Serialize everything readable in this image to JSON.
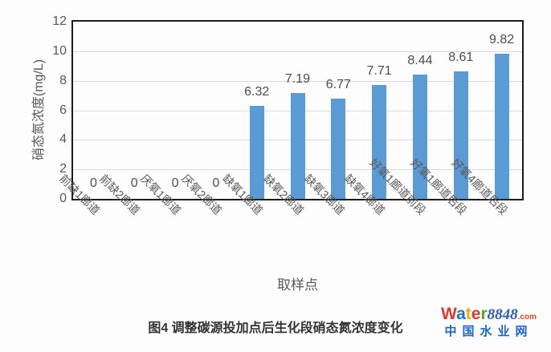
{
  "chart_data": {
    "type": "bar",
    "title": "",
    "categories": [
      "前缺1廊道",
      "前缺2廊道",
      "厌氧1廊道",
      "厌氧2廊道",
      "缺氧1廊道",
      "缺氧2廊道",
      "缺氧3廊道",
      "缺氧4廊道",
      "好氧1廊道前段",
      "好氧1廊道后段",
      "好氧4廊道后段"
    ],
    "values": [
      0,
      0,
      0,
      0,
      6.32,
      7.19,
      6.77,
      7.71,
      8.44,
      8.61,
      9.82
    ],
    "data_labels": [
      "0",
      "0",
      "0",
      "0",
      "6.32",
      "7.19",
      "6.77",
      "7.71",
      "8.44",
      "8.61",
      "9.82"
    ],
    "xlabel": "取样点",
    "ylabel": "硝态氮浓度(mg/L)",
    "ylim": [
      0,
      12
    ],
    "ytick_step": 2,
    "ytick_labels": [
      "0",
      "2",
      "4",
      "6",
      "8",
      "10",
      "12"
    ],
    "grid": "horizontal",
    "legend": "none",
    "bar_color": "#5b9bd5",
    "gridline_color": "#d9d9d9",
    "axis_text_color": "#595959"
  },
  "caption": "图4 调整碳源投加点后生化段硝态氮浓度变化",
  "logo": {
    "brand_letters": [
      {
        "ch": "W",
        "color": "#e0392e"
      },
      {
        "ch": "a",
        "color": "#1f6fd0"
      },
      {
        "ch": "t",
        "color": "#f2a900"
      },
      {
        "ch": "e",
        "color": "#e0392e"
      },
      {
        "ch": "r",
        "color": "#5aa71e"
      }
    ],
    "brand_number": "8848",
    "brand_number_color": "#2a5cb8",
    "brand_tld": ".com",
    "brand_tld_color": "#e8491d",
    "subtitle": "中国水业网",
    "subtitle_color": "#1a66cc"
  }
}
